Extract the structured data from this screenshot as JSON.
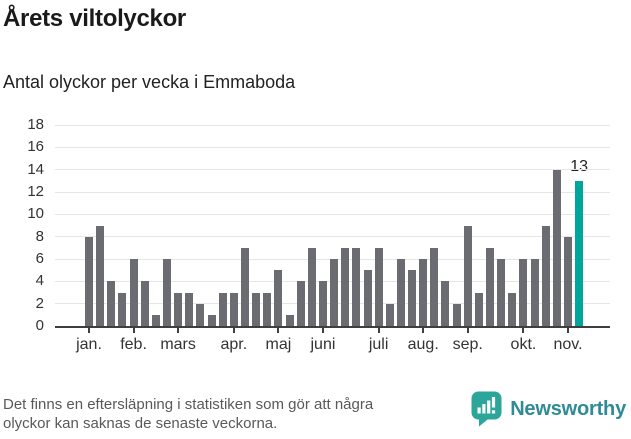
{
  "title": "Årets viltolyckor",
  "subtitle": "Antal olyckor per vecka i Emmaboda",
  "footer": {
    "note_lines": [
      "Det finns en eftersläpning i statistiken som gör att några",
      "olyckor kan saknas de senaste veckorna."
    ],
    "brand": "Newsworthy"
  },
  "colors": {
    "bar": "#6b6b72",
    "highlight": "#00a69c",
    "grid": "#e6e6e6",
    "axis": "#3f3f3f",
    "title_text": "#1a1a1a",
    "subtitle_text": "#222222",
    "tick_text": "#333333",
    "note_text": "#595959",
    "logo_bubble": "#2ca69b",
    "logo_text": "#2f8b95"
  },
  "chart_data": {
    "type": "bar",
    "title": "Årets viltolyckor",
    "subtitle": "Antal olyckor per vecka i Emmaboda",
    "x_unit": "vecka",
    "ylim": [
      0,
      18
    ],
    "yticks": [
      0,
      2,
      4,
      6,
      8,
      10,
      12,
      14,
      16,
      18
    ],
    "grid": true,
    "legend": "none",
    "values": [
      8,
      9,
      4,
      3,
      6,
      4,
      1,
      6,
      3,
      3,
      2,
      1,
      3,
      3,
      7,
      3,
      3,
      5,
      1,
      4,
      7,
      4,
      6,
      7,
      7,
      5,
      7,
      2,
      6,
      5,
      6,
      7,
      4,
      2,
      9,
      3,
      7,
      6,
      3,
      6,
      6,
      9,
      14,
      8,
      13
    ],
    "highlight_index": 44,
    "highlight_label": "13",
    "months": [
      {
        "label": "jan.",
        "week": 1
      },
      {
        "label": "feb.",
        "week": 5
      },
      {
        "label": "mars",
        "week": 9
      },
      {
        "label": "apr.",
        "week": 14
      },
      {
        "label": "maj",
        "week": 18
      },
      {
        "label": "juni",
        "week": 22
      },
      {
        "label": "juli",
        "week": 27
      },
      {
        "label": "aug.",
        "week": 31
      },
      {
        "label": "sep.",
        "week": 35
      },
      {
        "label": "okt.",
        "week": 40
      },
      {
        "label": "nov.",
        "week": 44
      }
    ]
  }
}
